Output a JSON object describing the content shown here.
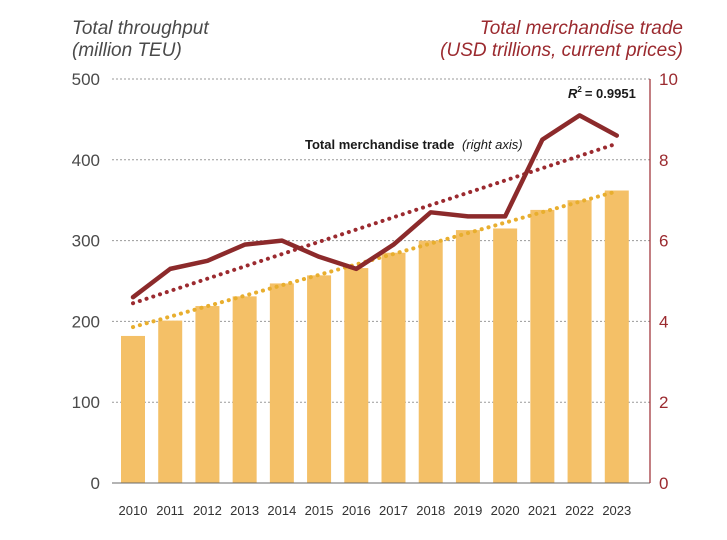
{
  "chart_data": {
    "type": "bar",
    "title_left": [
      "Total throughput",
      "(million TEU)"
    ],
    "title_right": [
      "Total merchandise trade",
      "(USD trillions, current prices)"
    ],
    "categories": [
      "2010",
      "2011",
      "2012",
      "2013",
      "2014",
      "2015",
      "2016",
      "2017",
      "2018",
      "2019",
      "2020",
      "2021",
      "2022",
      "2023"
    ],
    "series": [
      {
        "type": "bar",
        "axis": "left",
        "values": [
          182,
          201,
          219,
          231,
          247,
          257,
          266,
          285,
          300,
          313,
          315,
          338,
          350,
          362
        ]
      },
      {
        "name": "Total merchandise trade",
        "label_suffix": "(right axis)",
        "type": "line",
        "axis": "right",
        "values": [
          4.6,
          5.3,
          5.5,
          5.9,
          6.0,
          5.6,
          5.3,
          5.9,
          6.7,
          6.6,
          6.6,
          8.5,
          9.1,
          8.6
        ]
      }
    ],
    "trendlines": [
      {
        "of_series": 0,
        "axis": "left",
        "start": 193,
        "end": 361
      },
      {
        "of_series": 1,
        "axis": "right",
        "start": 4.45,
        "end": 8.4
      }
    ],
    "r_squared_label": "= 0.9951",
    "r_symbol": "R",
    "r_exp": "2",
    "y_left": {
      "ticks": [
        "0",
        "100",
        "200",
        "300",
        "400",
        "500"
      ],
      "range": [
        0,
        500
      ]
    },
    "y_right": {
      "ticks": [
        "0",
        "2",
        "4",
        "6",
        "8",
        "10"
      ],
      "range": [
        0,
        10
      ]
    },
    "grid": "horizontal-dashed",
    "colors": {
      "bar": "#f4c067",
      "bar_trend": "#e8ae2e",
      "line": "#8c2a2b",
      "line_trend": "#9b2a2f",
      "left_axis_text": "#4a4a4a",
      "right_axis_text": "#9b2a2f",
      "grid": "#9a9a9a"
    }
  }
}
